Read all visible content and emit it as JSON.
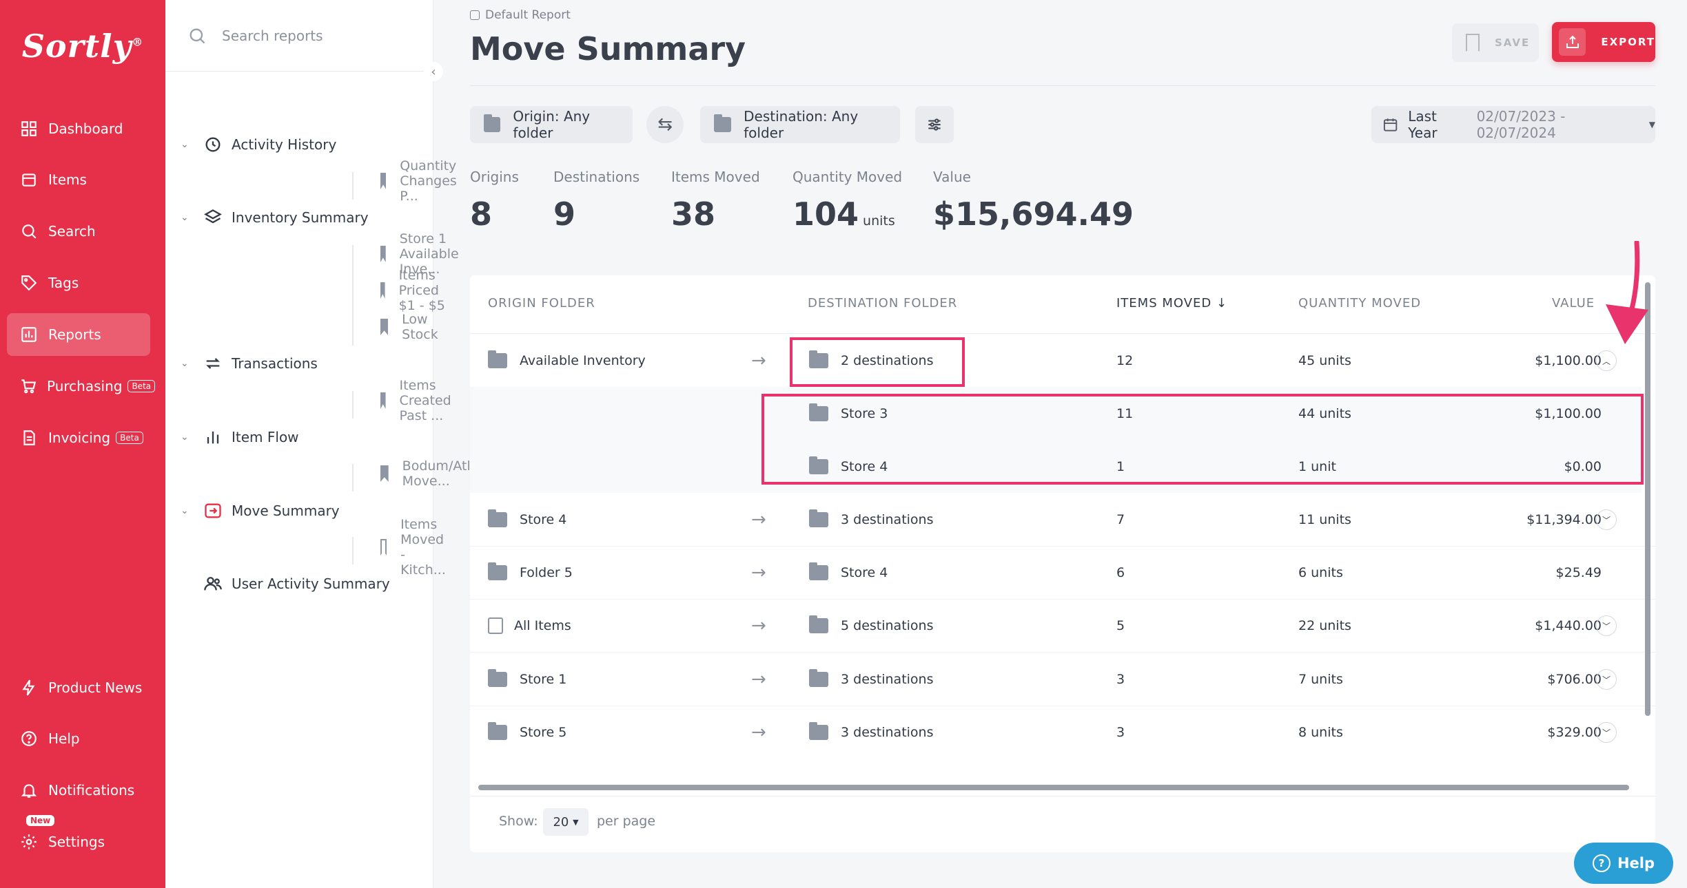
{
  "brand": {
    "logo": "Sortly",
    "reg": "®",
    "accent": "#e63049",
    "highlight": "#e8336d"
  },
  "nav": {
    "items": [
      {
        "label": "Dashboard",
        "icon": "dashboard-icon"
      },
      {
        "label": "Items",
        "icon": "items-icon"
      },
      {
        "label": "Search",
        "icon": "search-icon"
      },
      {
        "label": "Tags",
        "icon": "tag-icon"
      },
      {
        "label": "Reports",
        "icon": "reports-icon",
        "active": true
      },
      {
        "label": "Purchasing",
        "icon": "purchasing-icon",
        "badge": "Beta"
      },
      {
        "label": "Invoicing",
        "icon": "invoice-icon",
        "badge": "Beta"
      }
    ],
    "bottom": [
      {
        "label": "Product News",
        "icon": "lightning-icon"
      },
      {
        "label": "Help",
        "icon": "help-icon"
      },
      {
        "label": "Notifications",
        "icon": "bell-icon"
      },
      {
        "label": "Settings",
        "icon": "gear-icon",
        "badge": "New"
      }
    ]
  },
  "reports_sidebar": {
    "search_placeholder": "Search reports",
    "tree": [
      {
        "label": "Activity History",
        "icon": "history-icon",
        "children": [
          "Quantity Changes P..."
        ]
      },
      {
        "label": "Inventory Summary",
        "icon": "layers-icon",
        "children": [
          "Store 1 Available Inve...",
          "Items Priced $1 - $5",
          "Low Stock"
        ]
      },
      {
        "label": "Transactions",
        "icon": "transactions-icon",
        "children": [
          "Items Created Past ..."
        ]
      },
      {
        "label": "Item Flow",
        "icon": "bar-chart-icon",
        "children": [
          "Bodum/Atlas Move..."
        ]
      },
      {
        "label": "Move Summary",
        "icon": "move-icon",
        "children": [
          "Items Moved - Kitch..."
        ]
      },
      {
        "label": "User Activity Summary",
        "icon": "users-icon",
        "children": []
      }
    ]
  },
  "header": {
    "breadcrumb": "Default Report",
    "title": "Move Summary",
    "save_label": "SAVE",
    "export_label": "EXPORT"
  },
  "filters": {
    "origin": "Origin: Any folder",
    "destination": "Destination: Any folder",
    "date_preset": "Last Year",
    "date_range": "02/07/2023 - 02/07/2024"
  },
  "stats": [
    {
      "label": "Origins",
      "value": "8"
    },
    {
      "label": "Destinations",
      "value": "9"
    },
    {
      "label": "Items Moved",
      "value": "38"
    },
    {
      "label": "Quantity Moved",
      "value": "104",
      "unit": "units"
    },
    {
      "label": "Value",
      "value": "$15,694.49"
    }
  ],
  "table": {
    "columns": [
      "ORIGIN FOLDER",
      "DESTINATION FOLDER",
      "ITEMS MOVED",
      "QUANTITY MOVED",
      "VALUE"
    ],
    "sort_indicator": "↓",
    "rows": [
      {
        "origin": "Available Inventory",
        "destination": "2 destinations",
        "items": "12",
        "qty": "45 units",
        "value": "$1,100.00",
        "expanded": true,
        "sub": [
          {
            "destination": "Store 3",
            "items": "11",
            "qty": "44 units",
            "value": "$1,100.00"
          },
          {
            "destination": "Store 4",
            "items": "1",
            "qty": "1 unit",
            "value": "$0.00"
          }
        ]
      },
      {
        "origin": "Store 4",
        "destination": "3 destinations",
        "items": "7",
        "qty": "11 units",
        "value": "$11,394.00",
        "expandable": true
      },
      {
        "origin": "Folder 5",
        "destination": "Store 4",
        "items": "6",
        "qty": "6 units",
        "value": "$25.49",
        "expandable": false
      },
      {
        "origin": "All Items",
        "destination": "5 destinations",
        "items": "5",
        "qty": "22 units",
        "value": "$1,440.00",
        "expandable": true
      },
      {
        "origin": "Store 1",
        "destination": "3 destinations",
        "items": "3",
        "qty": "7 units",
        "value": "$706.00",
        "expandable": true
      },
      {
        "origin": "Store 5",
        "destination": "3 destinations",
        "items": "3",
        "qty": "8 units",
        "value": "$329.00",
        "expandable": true
      }
    ],
    "footer": {
      "show_label": "Show:",
      "page_size": "20",
      "per_page_label": "per page"
    }
  },
  "help_button": "Help"
}
